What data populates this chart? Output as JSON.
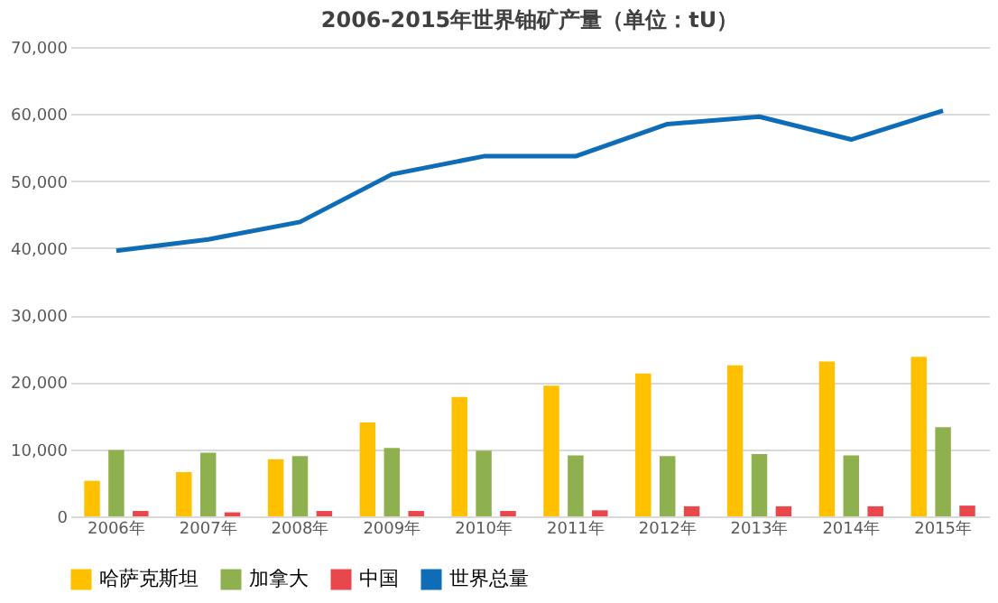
{
  "chart_data": {
    "type": "bar",
    "title": "2006-2015年世界铀矿产量（单位：tU）",
    "categories": [
      "2006年",
      "2007年",
      "2008年",
      "2009年",
      "2010年",
      "2011年",
      "2012年",
      "2013年",
      "2014年",
      "2015年"
    ],
    "series": [
      {
        "name": "哈萨克斯坦",
        "color": "#ffc000",
        "values": [
          5300,
          6600,
          8500,
          14000,
          17800,
          19500,
          21300,
          22500,
          23100,
          23800
        ]
      },
      {
        "name": "加拿大",
        "color": "#8fb04e",
        "values": [
          9900,
          9500,
          9000,
          10200,
          9800,
          9100,
          9000,
          9300,
          9100,
          13300
        ]
      },
      {
        "name": "中国",
        "color": "#e8474c",
        "values": [
          800,
          600,
          800,
          800,
          800,
          900,
          1500,
          1500,
          1500,
          1600
        ]
      },
      {
        "name": "世界总量",
        "color": "#0f6db8",
        "type": "line",
        "values": [
          39600,
          41300,
          43900,
          51000,
          53700,
          53700,
          58500,
          59600,
          56200,
          60500
        ]
      }
    ],
    "ylim": [
      0,
      70000
    ],
    "yticks": [
      0,
      {
        "value": 10000,
        "label": "10,000"
      },
      {
        "value": 20000,
        "label": "20,000"
      },
      {
        "value": 30000,
        "label": "30,000"
      },
      {
        "value": 40000,
        "label": "40,000"
      },
      {
        "value": 50000,
        "label": "50,000"
      },
      {
        "value": 60000,
        "label": "60,000"
      },
      {
        "value": 70000,
        "label": "70,000"
      }
    ],
    "grid": "y",
    "legend": "bottom"
  }
}
